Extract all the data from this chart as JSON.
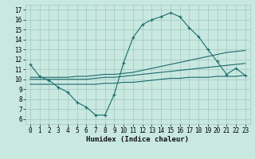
{
  "title": "",
  "xlabel": "Humidex (Indice chaleur)",
  "ylabel": "",
  "bg_color": "#c8e8e0",
  "grid_color": "#a0c8c0",
  "line_color": "#1a6b6b",
  "xlim": [
    -0.5,
    23.5
  ],
  "ylim": [
    5.5,
    17.5
  ],
  "xticks": [
    0,
    1,
    2,
    3,
    4,
    5,
    6,
    7,
    8,
    9,
    10,
    11,
    12,
    13,
    14,
    15,
    16,
    17,
    18,
    19,
    20,
    21,
    22,
    23
  ],
  "yticks": [
    6,
    7,
    8,
    9,
    10,
    11,
    12,
    13,
    14,
    15,
    16,
    17
  ],
  "curve1_x": [
    0,
    1,
    2,
    3,
    4,
    5,
    6,
    7,
    8,
    9,
    10,
    11,
    12,
    13,
    14,
    15,
    16,
    17,
    18,
    19,
    20,
    21,
    22,
    23
  ],
  "curve1_y": [
    11.5,
    10.3,
    9.9,
    9.2,
    8.7,
    7.7,
    7.2,
    6.4,
    6.4,
    8.5,
    11.7,
    14.2,
    15.5,
    16.0,
    16.3,
    16.7,
    16.3,
    15.2,
    14.3,
    13.0,
    11.8,
    10.5,
    11.1,
    10.4
  ],
  "curve2_x": [
    0,
    1,
    2,
    3,
    4,
    5,
    6,
    7,
    8,
    9,
    10,
    11,
    12,
    13,
    14,
    15,
    16,
    17,
    18,
    19,
    20,
    21,
    22,
    23
  ],
  "curve2_y": [
    10.2,
    10.2,
    10.2,
    10.2,
    10.2,
    10.3,
    10.3,
    10.4,
    10.5,
    10.5,
    10.6,
    10.7,
    10.9,
    11.1,
    11.3,
    11.5,
    11.7,
    11.9,
    12.1,
    12.3,
    12.5,
    12.7,
    12.8,
    12.9
  ],
  "curve3_x": [
    0,
    1,
    2,
    3,
    4,
    5,
    6,
    7,
    8,
    9,
    10,
    11,
    12,
    13,
    14,
    15,
    16,
    17,
    18,
    19,
    20,
    21,
    22,
    23
  ],
  "curve3_y": [
    10.0,
    10.0,
    10.0,
    10.0,
    10.0,
    10.0,
    10.0,
    10.1,
    10.2,
    10.2,
    10.3,
    10.4,
    10.5,
    10.6,
    10.7,
    10.8,
    10.9,
    11.0,
    11.1,
    11.2,
    11.3,
    11.4,
    11.5,
    11.6
  ],
  "curve4_x": [
    0,
    1,
    2,
    3,
    4,
    5,
    6,
    7,
    8,
    9,
    10,
    11,
    12,
    13,
    14,
    15,
    16,
    17,
    18,
    19,
    20,
    21,
    22,
    23
  ],
  "curve4_y": [
    9.5,
    9.5,
    9.5,
    9.5,
    9.5,
    9.5,
    9.5,
    9.5,
    9.6,
    9.6,
    9.7,
    9.7,
    9.8,
    9.9,
    10.0,
    10.1,
    10.1,
    10.2,
    10.2,
    10.2,
    10.3,
    10.3,
    10.3,
    10.4
  ],
  "xlabel_fontsize": 6.5,
  "tick_fontsize": 5.5
}
